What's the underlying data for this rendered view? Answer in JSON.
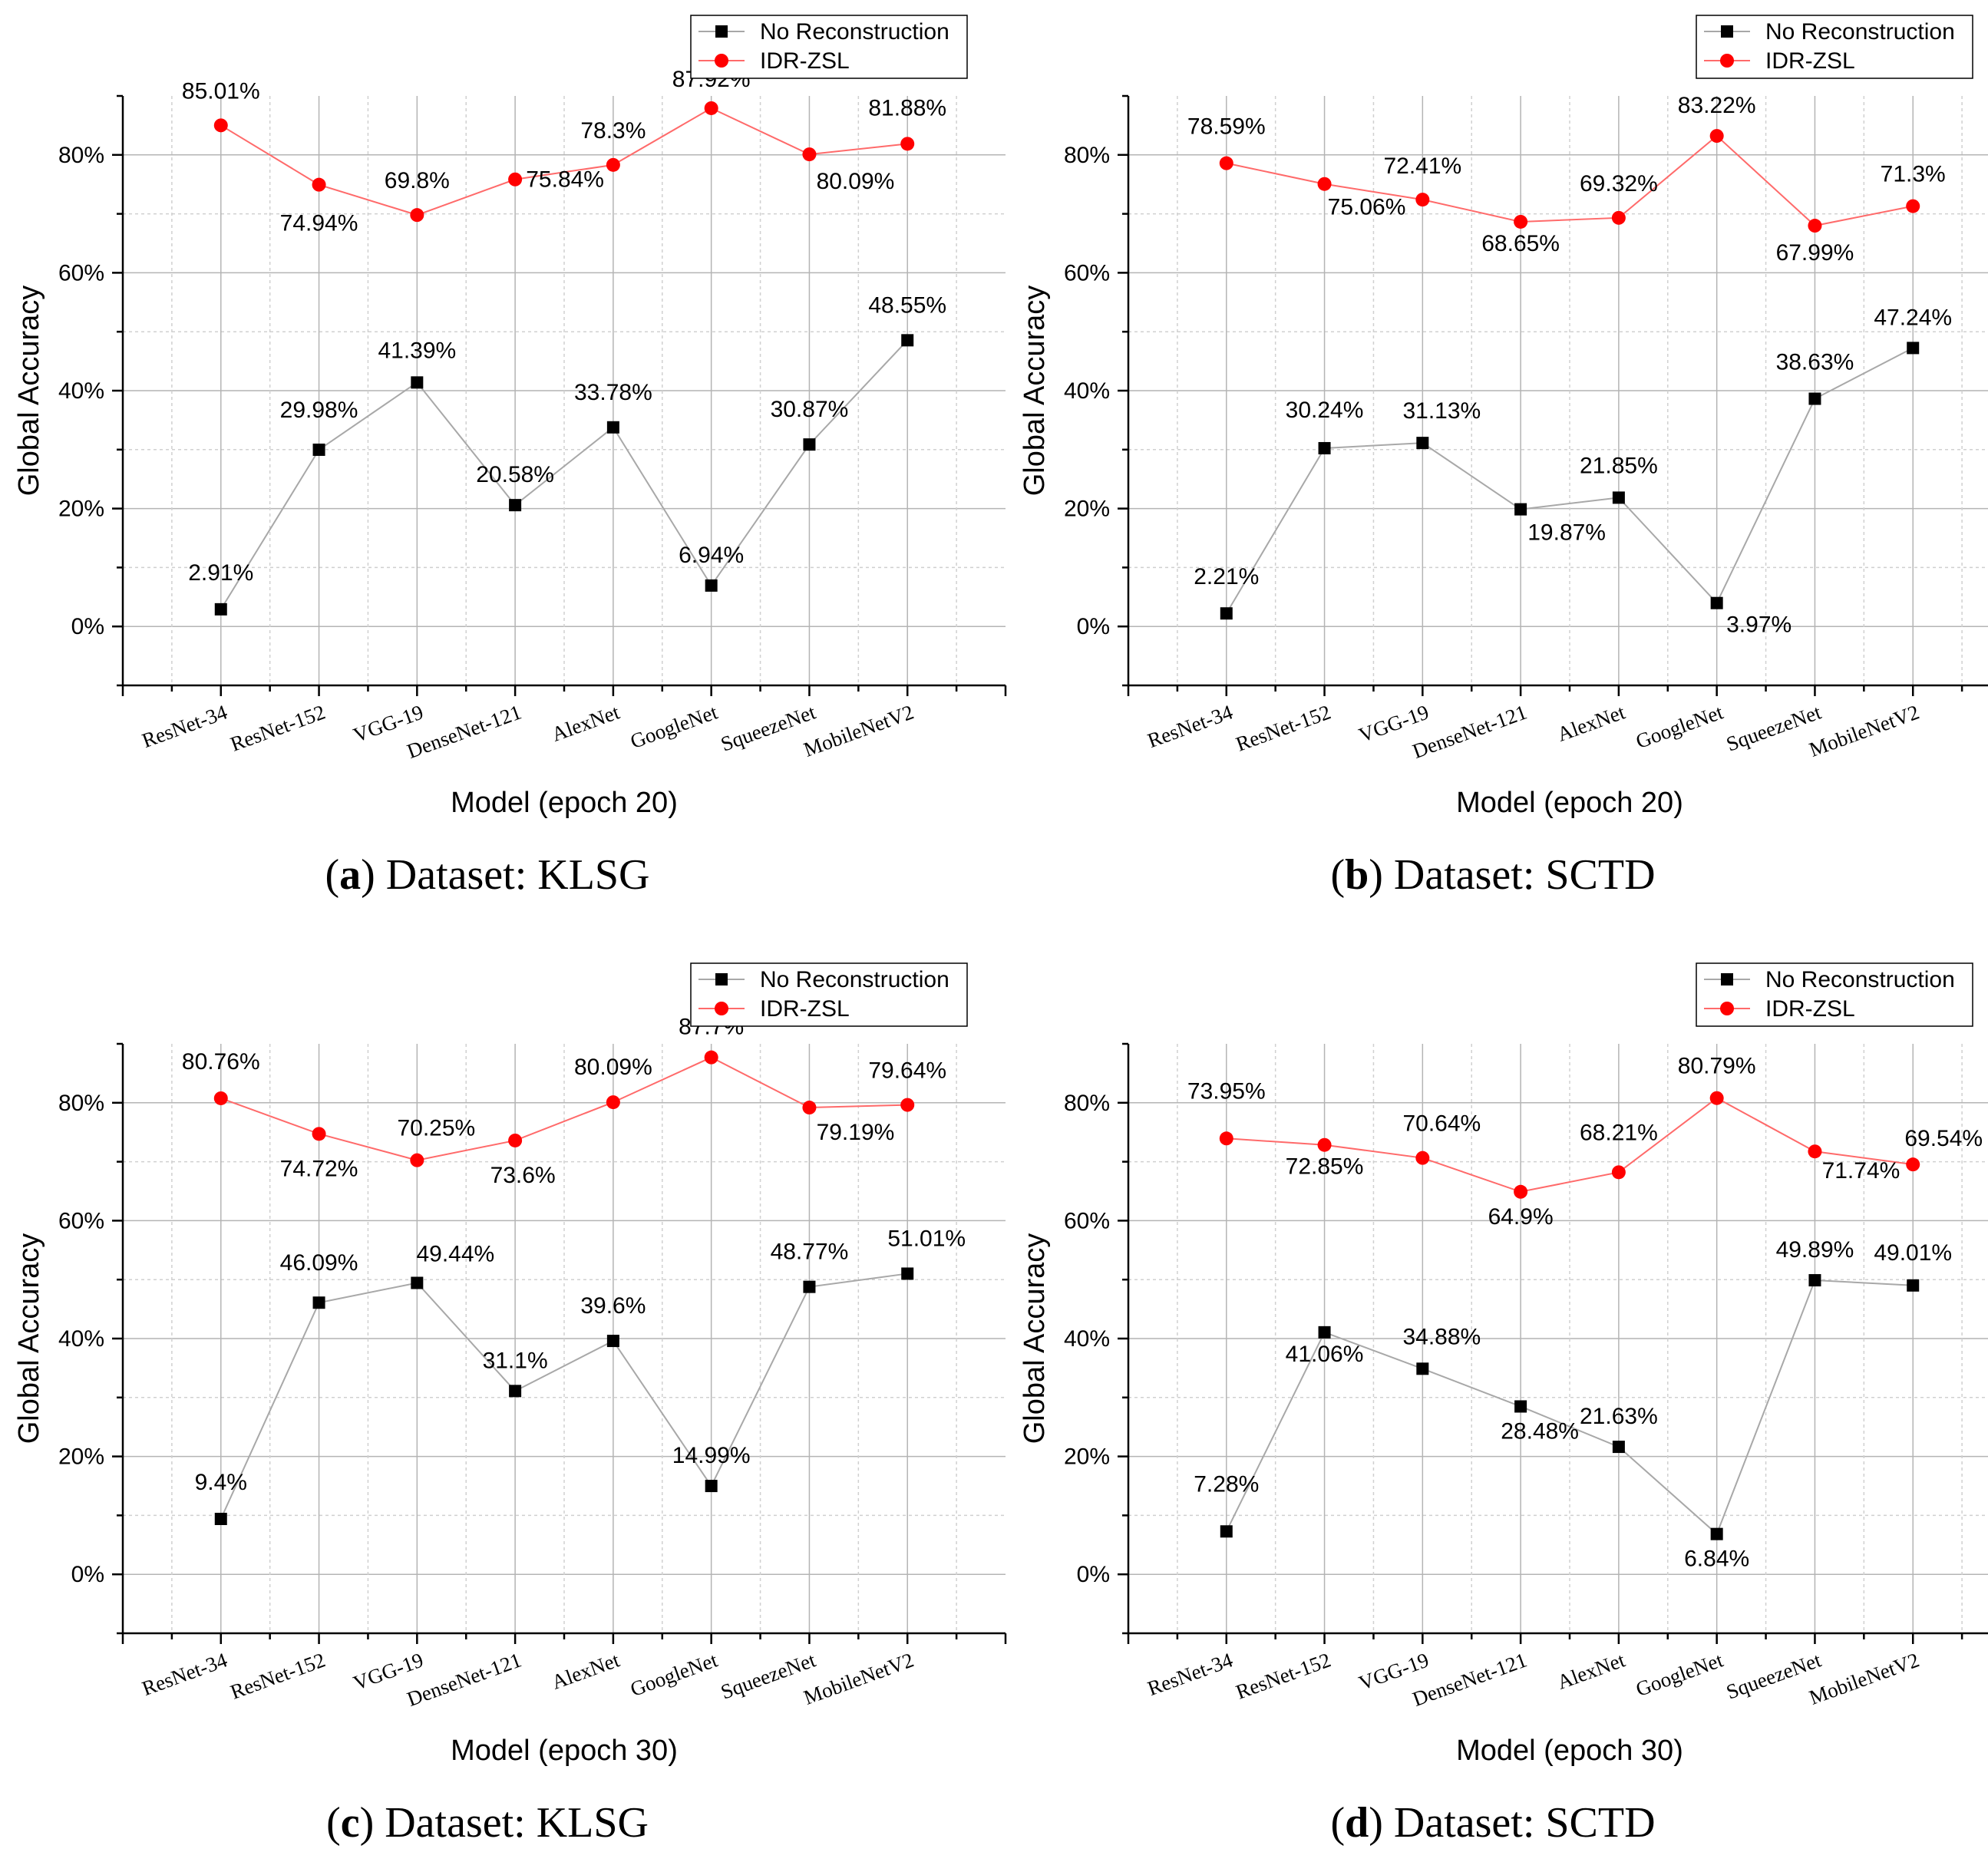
{
  "chart_data": [
    {
      "type": "line",
      "panel": "a",
      "caption_letter": "a",
      "caption_text": " Dataset: KLSG",
      "categories": [
        "ResNet-34",
        "ResNet-152",
        "VGG-19",
        "DenseNet-121",
        "AlexNet",
        "GoogleNet",
        "SqueezeNet",
        "MobileNetV2"
      ],
      "xlabel": "Model (epoch 20)",
      "ylabel": "Global Accuracy",
      "ylim": [
        -10,
        90
      ],
      "yticks": [
        0,
        20,
        40,
        60,
        80
      ],
      "ytick_labels": [
        "0%",
        "20%",
        "40%",
        "60%",
        "80%"
      ],
      "grid": true,
      "legend_position": "top-right",
      "series": [
        {
          "name": "No Reconstruction",
          "color": "#000000",
          "marker": "square",
          "values": [
            2.91,
            29.98,
            41.39,
            20.58,
            33.78,
            6.94,
            30.87,
            48.55
          ],
          "labels": [
            "2.91%",
            "29.98%",
            "41.39%",
            "20.58%",
            "33.78%",
            "6.94%",
            "30.87%",
            "48.55%"
          ]
        },
        {
          "name": "IDR-ZSL",
          "color": "#ff0000",
          "marker": "circle",
          "values": [
            85.01,
            74.94,
            69.8,
            75.84,
            78.3,
            87.92,
            80.09,
            81.88
          ],
          "labels": [
            "85.01%",
            "74.94%",
            "69.8%",
            "75.84%",
            "78.3%",
            "87.92%",
            "80.09%",
            "81.88%"
          ]
        }
      ]
    },
    {
      "type": "line",
      "panel": "b",
      "caption_letter": "b",
      "caption_text": " Dataset: SCTD",
      "categories": [
        "ResNet-34",
        "ResNet-152",
        "VGG-19",
        "DenseNet-121",
        "AlexNet",
        "GoogleNet",
        "SqueezeNet",
        "MobileNetV2"
      ],
      "xlabel": "Model (epoch 20)",
      "ylabel": "Global Accuracy",
      "ylim": [
        -10,
        90
      ],
      "yticks": [
        0,
        20,
        40,
        60,
        80
      ],
      "ytick_labels": [
        "0%",
        "20%",
        "40%",
        "60%",
        "80%"
      ],
      "grid": true,
      "legend_position": "top-right",
      "series": [
        {
          "name": "No Reconstruction",
          "color": "#000000",
          "marker": "square",
          "values": [
            2.21,
            30.24,
            31.13,
            19.87,
            21.85,
            3.97,
            38.63,
            47.24
          ],
          "labels": [
            "2.21%",
            "30.24%",
            "31.13%",
            "19.87%",
            "21.85%",
            "3.97%",
            "38.63%",
            "47.24%"
          ]
        },
        {
          "name": "IDR-ZSL",
          "color": "#ff0000",
          "marker": "circle",
          "values": [
            78.59,
            75.06,
            72.41,
            68.65,
            69.32,
            83.22,
            67.99,
            71.3
          ],
          "labels": [
            "78.59%",
            "75.06%",
            "72.41%",
            "68.65%",
            "69.32%",
            "83.22%",
            "67.99%",
            "71.3%"
          ]
        }
      ]
    },
    {
      "type": "line",
      "panel": "c",
      "caption_letter": "c",
      "caption_text": " Dataset: KLSG",
      "categories": [
        "ResNet-34",
        "ResNet-152",
        "VGG-19",
        "DenseNet-121",
        "AlexNet",
        "GoogleNet",
        "SqueezeNet",
        "MobileNetV2"
      ],
      "xlabel": "Model (epoch 30)",
      "ylabel": "Global Accuracy",
      "ylim": [
        -10,
        90
      ],
      "yticks": [
        0,
        20,
        40,
        60,
        80
      ],
      "ytick_labels": [
        "0%",
        "20%",
        "40%",
        "60%",
        "80%"
      ],
      "grid": true,
      "legend_position": "top-right",
      "series": [
        {
          "name": "No Reconstruction",
          "color": "#000000",
          "marker": "square",
          "values": [
            9.4,
            46.09,
            49.44,
            31.1,
            39.6,
            14.99,
            48.77,
            51.01
          ],
          "labels": [
            "9.4%",
            "46.09%",
            "49.44%",
            "31.1%",
            "39.6%",
            "14.99%",
            "48.77%",
            "51.01%"
          ]
        },
        {
          "name": "IDR-ZSL",
          "color": "#ff0000",
          "marker": "circle",
          "values": [
            80.76,
            74.72,
            70.25,
            73.6,
            80.09,
            87.7,
            79.19,
            79.64
          ],
          "labels": [
            "80.76%",
            "74.72%",
            "70.25%",
            "73.6%",
            "80.09%",
            "87.7%",
            "79.19%",
            "79.64%"
          ]
        }
      ]
    },
    {
      "type": "line",
      "panel": "d",
      "caption_letter": "d",
      "caption_text": " Dataset: SCTD",
      "categories": [
        "ResNet-34",
        "ResNet-152",
        "VGG-19",
        "DenseNet-121",
        "AlexNet",
        "GoogleNet",
        "SqueezeNet",
        "MobileNetV2"
      ],
      "xlabel": "Model (epoch 30)",
      "ylabel": "Global Accuracy",
      "ylim": [
        -10,
        90
      ],
      "yticks": [
        0,
        20,
        40,
        60,
        80
      ],
      "ytick_labels": [
        "0%",
        "20%",
        "40%",
        "60%",
        "80%"
      ],
      "grid": true,
      "legend_position": "top-right",
      "series": [
        {
          "name": "No Reconstruction",
          "color": "#000000",
          "marker": "square",
          "values": [
            7.28,
            41.06,
            34.88,
            28.48,
            21.63,
            6.84,
            49.89,
            49.01
          ],
          "labels": [
            "7.28%",
            "41.06%",
            "34.88%",
            "28.48%",
            "21.63%",
            "6.84%",
            "49.89%",
            "49.01%"
          ]
        },
        {
          "name": "IDR-ZSL",
          "color": "#ff0000",
          "marker": "circle",
          "values": [
            73.95,
            72.85,
            70.64,
            64.9,
            68.21,
            80.79,
            71.74,
            69.54
          ],
          "labels": [
            "73.95%",
            "72.85%",
            "70.64%",
            "64.9%",
            "68.21%",
            "80.79%",
            "71.74%",
            "69.54%"
          ]
        }
      ]
    }
  ]
}
